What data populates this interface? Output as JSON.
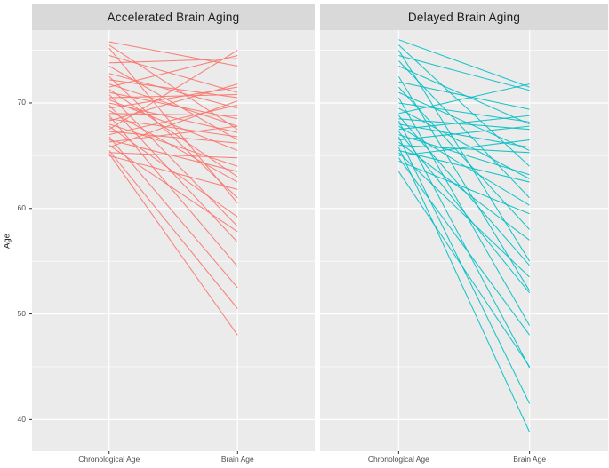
{
  "chart_data": {
    "type": "line",
    "subtype": "faceted-slope-chart",
    "title": "",
    "xlabel": "",
    "ylabel": "Age",
    "categories": [
      "Chronological Age",
      "Brain Age"
    ],
    "y_ticks": [
      70,
      60,
      50,
      40
    ],
    "y_minor_ticks": [
      75,
      65,
      55,
      45
    ],
    "ylim": [
      37.0,
      76.9
    ],
    "grid": "on",
    "legend": "none",
    "facets": [
      {
        "label": "Accelerated Brain Aging",
        "color": "#F8766D",
        "pairs": [
          [
            75.8,
            73.5
          ],
          [
            75.5,
            67.5
          ],
          [
            75.2,
            60.5
          ],
          [
            74.5,
            71.0
          ],
          [
            73.8,
            74.2
          ],
          [
            73.5,
            66.5
          ],
          [
            72.8,
            69.5
          ],
          [
            72.5,
            61.0
          ],
          [
            72.2,
            70.5
          ],
          [
            71.8,
            67.8
          ],
          [
            71.5,
            74.5
          ],
          [
            71.3,
            63.0
          ],
          [
            71.0,
            68.5
          ],
          [
            70.8,
            58.3
          ],
          [
            70.5,
            70.8
          ],
          [
            70.3,
            65.5
          ],
          [
            70.0,
            67.2
          ],
          [
            69.8,
            56.8
          ],
          [
            69.5,
            71.5
          ],
          [
            69.3,
            62.5
          ],
          [
            69.0,
            68.8
          ],
          [
            68.8,
            54.5
          ],
          [
            68.5,
            66.8
          ],
          [
            68.3,
            71.8
          ],
          [
            68.0,
            64.0
          ],
          [
            67.8,
            59.2
          ],
          [
            67.5,
            75.0
          ],
          [
            67.3,
            66.2
          ],
          [
            67.0,
            69.8
          ],
          [
            66.8,
            52.5
          ],
          [
            66.5,
            63.5
          ],
          [
            66.3,
            67.8
          ],
          [
            66.0,
            57.8
          ],
          [
            65.8,
            70.2
          ],
          [
            65.5,
            50.5
          ],
          [
            65.3,
            64.8
          ],
          [
            65.0,
            61.8
          ],
          [
            65.2,
            48.0
          ]
        ]
      },
      {
        "label": "Delayed Brain Aging",
        "color": "#00BFC4",
        "pairs": [
          [
            76.0,
            71.5
          ],
          [
            75.5,
            64.0
          ],
          [
            75.0,
            55.0
          ],
          [
            74.5,
            71.2
          ],
          [
            74.0,
            61.0
          ],
          [
            73.5,
            68.0
          ],
          [
            72.5,
            52.2
          ],
          [
            72.0,
            69.4
          ],
          [
            71.5,
            58.0
          ],
          [
            71.0,
            65.5
          ],
          [
            70.5,
            48.9
          ],
          [
            70.0,
            68.2
          ],
          [
            69.5,
            62.8
          ],
          [
            69.0,
            71.8
          ],
          [
            68.8,
            54.6
          ],
          [
            68.5,
            67.5
          ],
          [
            68.3,
            44.9
          ],
          [
            68.0,
            65.8
          ],
          [
            67.8,
            60.3
          ],
          [
            67.5,
            68.8
          ],
          [
            67.3,
            52.0
          ],
          [
            67.0,
            63.2
          ],
          [
            66.8,
            41.5
          ],
          [
            66.5,
            67.8
          ],
          [
            66.3,
            57.0
          ],
          [
            66.0,
            65.3
          ],
          [
            65.8,
            38.8
          ],
          [
            65.5,
            62.5
          ],
          [
            65.3,
            53.5
          ],
          [
            65.0,
            66.5
          ],
          [
            64.8,
            48.0
          ],
          [
            64.5,
            59.5
          ],
          [
            63.5,
            45.0
          ]
        ]
      }
    ],
    "colors": {
      "accelerated": "#F8766D",
      "delayed": "#00BFC4",
      "panel_bg": "#EBEBEB",
      "strip_bg": "#D9D9D9",
      "gridline": "#FFFFFF",
      "tick": "#333333",
      "tick_label": "#4D4D4D",
      "strip_text": "#1A1A1A"
    }
  }
}
